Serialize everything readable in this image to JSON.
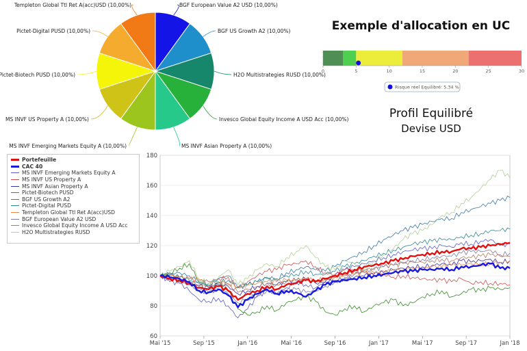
{
  "page": {
    "title": "Exemple d'allocation en UC",
    "profile": "Profil Equilibré",
    "currency": "Devise USD"
  },
  "chart_data": [
    {
      "type": "pie",
      "slices": [
        {
          "label": "BGF European Value A2 USD (10,00%)",
          "value": 10,
          "color": "#1414e6"
        },
        {
          "label": "BGF US Growth A2 (10,00%)",
          "value": 10,
          "color": "#1f8fcc"
        },
        {
          "label": "H2O Multistrategies RUSD (10,00%)",
          "value": 10,
          "color": "#16876b"
        },
        {
          "label": "Invesco Global Equity Income A USD Acc (10,00%)",
          "value": 10,
          "color": "#27b03a"
        },
        {
          "label": "MS INVF Asian Property A (10,00%)",
          "value": 10,
          "color": "#26c98a"
        },
        {
          "label": "MS INVF Emerging Markets Equity A (10,00%)",
          "value": 10,
          "color": "#9cc61d"
        },
        {
          "label": "MS INVF US Property A (10,00%)",
          "value": 10,
          "color": "#cfc317"
        },
        {
          "label": "Pictet-Biotech PUSD (10,00%)",
          "value": 10,
          "color": "#f5f50a"
        },
        {
          "label": "Pictet-Digital PUSD (10,00%)",
          "value": 10,
          "color": "#f5ac2e"
        },
        {
          "label": "Templeton Global Ttl Ret A(acc)USD (10,00%)",
          "value": 10,
          "color": "#f27a16"
        }
      ]
    },
    {
      "type": "bar",
      "subtype": "risk-gauge",
      "segments": [
        {
          "from": 0,
          "to": 3,
          "color": "#4f8f56"
        },
        {
          "from": 3,
          "to": 5,
          "color": "#4fcf4f"
        },
        {
          "from": 5,
          "to": 12,
          "color": "#ecec3a"
        },
        {
          "from": 12,
          "to": 22,
          "color": "#f0a878"
        },
        {
          "from": 22,
          "to": 30,
          "color": "#ec7070"
        }
      ],
      "ticks": [
        0,
        5,
        10,
        15,
        20,
        25,
        30
      ],
      "ylim": [
        0,
        30
      ],
      "marker": {
        "label": "Risque réel Equilibré: 5.34 %",
        "value": 5.34,
        "color": "#1010e0"
      }
    },
    {
      "type": "line",
      "x_ticks": [
        "Mai '15",
        "Sep '15",
        "Jan '16",
        "Mai '16",
        "Sep '16",
        "Jan '17",
        "Mai '17",
        "Sep '17",
        "Jan '18"
      ],
      "y_ticks": [
        60,
        80,
        100,
        120,
        140,
        160,
        180
      ],
      "ylim": [
        60,
        180
      ],
      "series": [
        {
          "name": "Portefeuille",
          "color": "#e01010",
          "width": 2.4,
          "values": [
            100,
            98,
            97,
            95,
            92,
            91,
            93,
            90,
            84,
            88,
            90,
            93,
            91,
            94,
            95,
            97,
            96,
            98,
            100,
            102,
            104,
            106,
            107,
            108,
            110,
            111,
            113,
            114,
            115,
            116,
            116,
            118,
            118,
            119,
            120,
            121,
            122
          ]
        },
        {
          "name": "CAC 40",
          "color": "#1a1add",
          "width": 2.4,
          "values": [
            100,
            99,
            98,
            96,
            90,
            89,
            91,
            87,
            79,
            84,
            88,
            91,
            88,
            90,
            89,
            86,
            90,
            94,
            96,
            97,
            98,
            99,
            100,
            101,
            102,
            103,
            103,
            104,
            104,
            105,
            104,
            106,
            106,
            107,
            108,
            105,
            105
          ]
        },
        {
          "name": "MS INVF Emerging Markets Equity A",
          "color": "#5a5ac8",
          "width": 0.8,
          "values": [
            100,
            96,
            95,
            90,
            84,
            83,
            85,
            80,
            72,
            78,
            86,
            90,
            88,
            92,
            96,
            94,
            92,
            96,
            100,
            104,
            106,
            108,
            110,
            112,
            114,
            116,
            117,
            118,
            118,
            120,
            119,
            122,
            121,
            123,
            124,
            120,
            121
          ]
        },
        {
          "name": "MS INVF US Property A",
          "color": "#cc5050",
          "width": 0.8,
          "values": [
            100,
            101,
            99,
            98,
            97,
            96,
            98,
            99,
            92,
            96,
            100,
            103,
            104,
            107,
            108,
            110,
            106,
            102,
            101,
            104,
            103,
            102,
            100,
            101,
            99,
            100,
            99,
            98,
            97,
            97,
            96,
            98,
            95,
            96,
            95,
            95,
            94
          ]
        },
        {
          "name": "MS INVF Asian Property A",
          "color": "#3434a0",
          "width": 0.8,
          "values": [
            100,
            99,
            97,
            95,
            93,
            92,
            94,
            93,
            88,
            90,
            93,
            95,
            94,
            96,
            97,
            98,
            95,
            96,
            97,
            98,
            99,
            100,
            101,
            102,
            104,
            105,
            106,
            106,
            107,
            108,
            107,
            110,
            109,
            110,
            111,
            109,
            110
          ]
        },
        {
          "name": "Pictet-Biotech PUSD",
          "color": "#3a8a2a",
          "width": 0.8,
          "values": [
            100,
            102,
            105,
            108,
            96,
            93,
            95,
            90,
            78,
            74,
            76,
            80,
            77,
            82,
            84,
            86,
            83,
            76,
            74,
            78,
            80,
            76,
            80,
            82,
            84,
            80,
            82,
            86,
            88,
            90,
            86,
            88,
            91,
            90,
            92,
            91,
            92
          ]
        },
        {
          "name": "BGF US Growth A2",
          "color": "#3a78a8",
          "width": 0.8,
          "values": [
            100,
            101,
            102,
            100,
            96,
            95,
            98,
            100,
            92,
            94,
            96,
            99,
            98,
            102,
            104,
            106,
            104,
            103,
            106,
            110,
            113,
            116,
            120,
            124,
            127,
            130,
            132,
            134,
            136,
            138,
            138,
            142,
            144,
            146,
            148,
            150,
            152
          ]
        },
        {
          "name": "Pictet-Digital PUSD",
          "color": "#2c8a92",
          "width": 0.8,
          "values": [
            100,
            100,
            99,
            97,
            95,
            94,
            96,
            97,
            92,
            94,
            96,
            98,
            97,
            100,
            101,
            103,
            101,
            101,
            103,
            106,
            108,
            110,
            113,
            115,
            117,
            119,
            121,
            122,
            123,
            124,
            124,
            126,
            127,
            128,
            130,
            130,
            131
          ]
        },
        {
          "name": "Templeton Global Ttl Ret A(acc)USD",
          "color": "#e8894a",
          "width": 0.8,
          "values": [
            100,
            100,
            99,
            98,
            97,
            96,
            96,
            95,
            93,
            94,
            95,
            96,
            96,
            97,
            97,
            98,
            97,
            98,
            99,
            100,
            101,
            102,
            102,
            103,
            104,
            104,
            105,
            105,
            106,
            106,
            107,
            107,
            108,
            108,
            108,
            109,
            110
          ]
        },
        {
          "name": "BGF European Value A2 USD",
          "color": "#7a7aa8",
          "width": 0.8,
          "values": [
            100,
            98,
            96,
            94,
            90,
            89,
            91,
            88,
            82,
            85,
            87,
            90,
            88,
            90,
            91,
            89,
            90,
            93,
            96,
            99,
            101,
            103,
            104,
            106,
            107,
            109,
            110,
            111,
            112,
            113,
            113,
            115,
            116,
            116,
            117,
            114,
            115
          ]
        },
        {
          "name": "Invesco Global Equity Income A USD Acc",
          "color": "#b07868",
          "width": 0.8,
          "values": [
            100,
            99,
            98,
            96,
            94,
            93,
            95,
            94,
            89,
            91,
            93,
            95,
            94,
            96,
            97,
            98,
            96,
            97,
            99,
            101,
            103,
            104,
            105,
            106,
            107,
            108,
            109,
            109,
            110,
            111,
            110,
            112,
            112,
            113,
            114,
            113,
            113
          ]
        },
        {
          "name": "H2O Multistrategies RUSD",
          "color": "#b0d098",
          "width": 0.8,
          "values": [
            100,
            103,
            106,
            110,
            98,
            95,
            99,
            104,
            94,
            98,
            104,
            108,
            106,
            112,
            116,
            120,
            112,
            106,
            104,
            110,
            108,
            104,
            110,
            114,
            118,
            124,
            128,
            130,
            134,
            140,
            142,
            148,
            152,
            158,
            164,
            170,
            165
          ]
        }
      ]
    }
  ]
}
